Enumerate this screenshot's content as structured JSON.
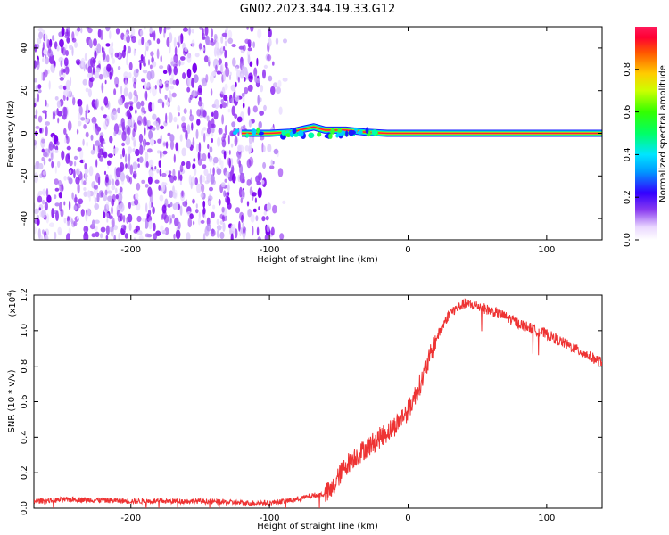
{
  "title": "GN02.2023.344.19.33.G12",
  "colors": {
    "snr_line": "#ee3333",
    "noise_purple": "#7a00ee",
    "signal_red": "#ff1a3a"
  },
  "chart_data": [
    {
      "type": "heatmap",
      "xlabel": "Height of straight line (km)",
      "ylabel": "Frequency (Hz)",
      "xlim": [
        -270,
        140
      ],
      "ylim": [
        -50,
        50
      ],
      "xticks": [
        -200,
        -100,
        0,
        100
      ],
      "yticks": [
        -40,
        -20,
        0,
        20,
        40
      ],
      "colorbar": {
        "label": "Normalized spectral amplitude",
        "ticks": [
          "0.0",
          "0.2",
          "0.4",
          "0.6",
          "0.8"
        ],
        "range": [
          0,
          1
        ],
        "colormap": "rainbow"
      },
      "noise_region_x": [
        -270,
        -100
      ],
      "signal_track": {
        "start_x": -125,
        "end_x": 140,
        "center_freq": 0,
        "points": [
          [
            -120,
            0
          ],
          [
            -100,
            0
          ],
          [
            -85,
            0.5
          ],
          [
            -75,
            2
          ],
          [
            -68,
            3
          ],
          [
            -60,
            1.5
          ],
          [
            -45,
            1.5
          ],
          [
            -30,
            0.5
          ],
          [
            -15,
            0
          ],
          [
            0,
            0
          ],
          [
            140,
            0
          ]
        ]
      }
    },
    {
      "type": "line",
      "xlabel": "Height of straight line (km)",
      "ylabel": "SNR (10 * v/v)",
      "scale_label": "(x10",
      "scale_exp": "4",
      "scale_close": ")",
      "xlim": [
        -270,
        140
      ],
      "ylim": [
        0,
        1.2
      ],
      "xticks": [
        -200,
        -100,
        0,
        100
      ],
      "yticks": [
        "0.0",
        "0.2",
        "0.4",
        "0.6",
        "0.8",
        "1.0",
        "1.2"
      ],
      "ytick_values": [
        0,
        0.2,
        0.4,
        0.6,
        0.8,
        1.0,
        1.2
      ],
      "series": [
        {
          "x": [
            -270,
            -240,
            -200,
            -150,
            -120,
            -100,
            -90,
            -80,
            -70,
            -60,
            -55,
            -50,
            -45,
            -40,
            -30,
            -20,
            -10,
            0,
            10,
            20,
            30,
            40,
            50,
            60,
            70,
            80,
            90,
            100,
            110,
            120,
            130,
            140
          ],
          "values": [
            0.04,
            0.05,
            0.04,
            0.04,
            0.03,
            0.03,
            0.04,
            0.05,
            0.07,
            0.08,
            0.1,
            0.18,
            0.24,
            0.28,
            0.34,
            0.4,
            0.46,
            0.55,
            0.72,
            0.95,
            1.1,
            1.15,
            1.14,
            1.11,
            1.08,
            1.04,
            1.01,
            0.98,
            0.94,
            0.9,
            0.86,
            0.82
          ]
        }
      ]
    }
  ]
}
